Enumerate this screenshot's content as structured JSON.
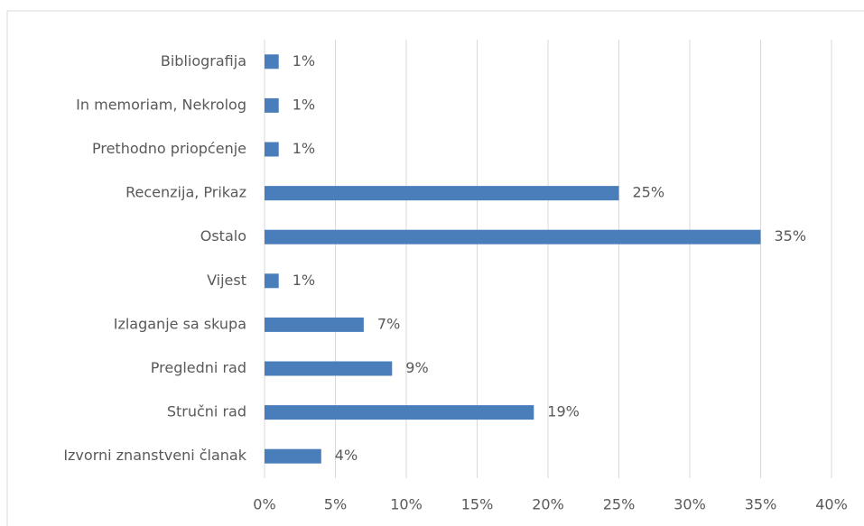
{
  "chart_data": {
    "type": "bar",
    "orientation": "horizontal",
    "categories": [
      "Bibliografija",
      "In memoriam, Nekrolog",
      "Prethodno priopćenje",
      "Recenzija, Prikaz",
      "Ostalo",
      "Vijest",
      "Izlaganje sa skupa",
      "Pregledni rad",
      "Stručni rad",
      "Izvorni znanstveni članak"
    ],
    "values": [
      1,
      1,
      1,
      25,
      35,
      1,
      7,
      9,
      19,
      4
    ],
    "value_labels": [
      "1%",
      "1%",
      "1%",
      "25%",
      "35%",
      "1%",
      "7%",
      "9%",
      "19%",
      "4%"
    ],
    "color": "#4a7ebb",
    "xlim": [
      0,
      40
    ],
    "xticks": [
      {
        "value": 0,
        "label": "0%"
      },
      {
        "value": 5,
        "label": "5%"
      },
      {
        "value": 10,
        "label": "10%"
      },
      {
        "value": 15,
        "label": "15%"
      },
      {
        "value": 20,
        "label": "20%"
      },
      {
        "value": 25,
        "label": "25%"
      },
      {
        "value": 30,
        "label": "30%"
      },
      {
        "value": 35,
        "label": "35%"
      },
      {
        "value": 40,
        "label": "40%"
      }
    ],
    "grid": true
  }
}
